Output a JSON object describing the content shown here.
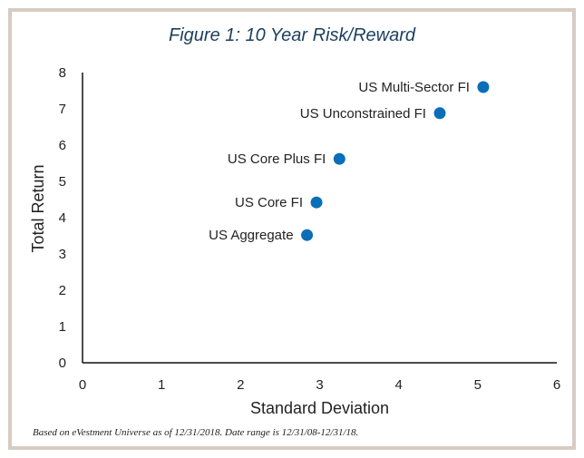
{
  "colors": {
    "marker": "#0a6eb8",
    "frame": "#d6ccc4",
    "title": "#1c3f5e"
  },
  "chart_data": {
    "type": "scatter",
    "title": "Figure 1:  10 Year Risk/Reward",
    "xlabel": "Standard Deviation",
    "ylabel": "Total Return",
    "xlim": [
      0,
      6
    ],
    "ylim": [
      0,
      8
    ],
    "xticks": [
      0,
      1,
      2,
      3,
      4,
      5,
      6
    ],
    "yticks": [
      0,
      1,
      2,
      3,
      4,
      5,
      6,
      7,
      8
    ],
    "grid": false,
    "points": [
      {
        "label": "US Multi-Sector FI",
        "x": 5.07,
        "y": 7.6
      },
      {
        "label": "US Unconstrained FI",
        "x": 4.52,
        "y": 6.88
      },
      {
        "label": "US Core Plus FI",
        "x": 3.25,
        "y": 5.62
      },
      {
        "label": "US Core FI",
        "x": 2.96,
        "y": 4.42
      },
      {
        "label": "US Aggregate",
        "x": 2.84,
        "y": 3.52
      }
    ]
  },
  "footnote": "Based on eVestment Universe as of 12/31/2018. Date range is 12/31/08-12/31/18."
}
